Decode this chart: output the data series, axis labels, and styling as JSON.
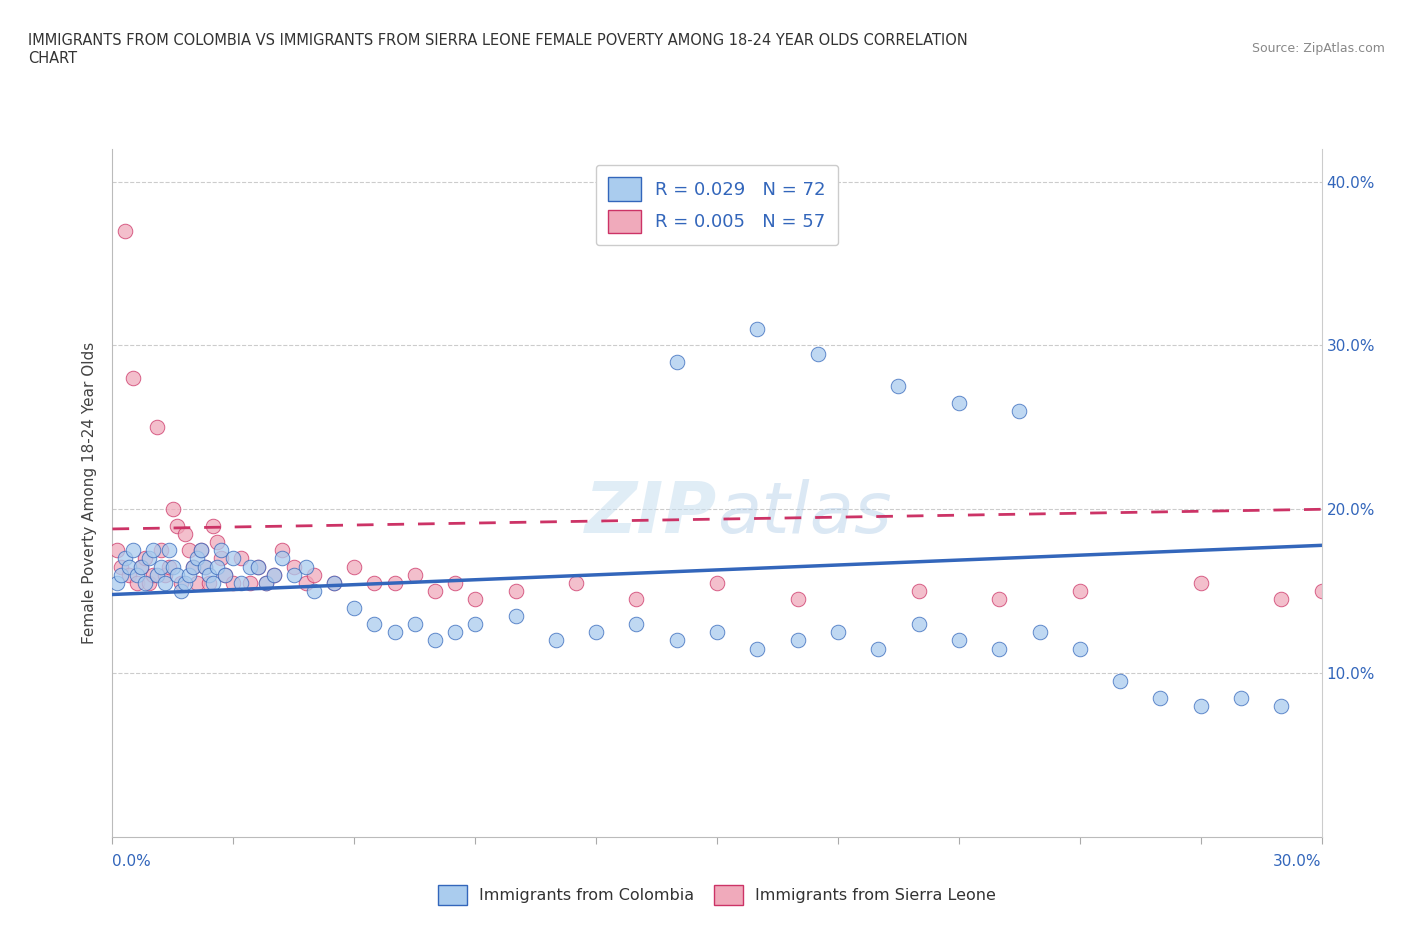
{
  "title_line1": "IMMIGRANTS FROM COLOMBIA VS IMMIGRANTS FROM SIERRA LEONE FEMALE POVERTY AMONG 18-24 YEAR OLDS CORRELATION",
  "title_line2": "CHART",
  "source": "Source: ZipAtlas.com",
  "ylabel": "Female Poverty Among 18-24 Year Olds",
  "watermark": "ZIPatlas",
  "colombia_R": 0.029,
  "colombia_N": 72,
  "sierraleone_R": 0.005,
  "sierraleone_N": 57,
  "colombia_color": "#aaccee",
  "sierraleone_color": "#f0aabb",
  "colombia_line_color": "#3366bb",
  "sierraleone_line_color": "#cc3366",
  "xlim": [
    0.0,
    0.3
  ],
  "ylim": [
    0.0,
    0.42
  ],
  "colombia_trend": [
    0.148,
    0.178
  ],
  "sierraleone_trend": [
    0.188,
    0.2
  ],
  "colombia_x": [
    0.001,
    0.002,
    0.003,
    0.004,
    0.005,
    0.006,
    0.007,
    0.008,
    0.009,
    0.01,
    0.011,
    0.012,
    0.013,
    0.014,
    0.015,
    0.016,
    0.017,
    0.018,
    0.019,
    0.02,
    0.021,
    0.022,
    0.023,
    0.024,
    0.025,
    0.026,
    0.027,
    0.028,
    0.03,
    0.032,
    0.034,
    0.036,
    0.038,
    0.04,
    0.042,
    0.045,
    0.048,
    0.05,
    0.055,
    0.06,
    0.065,
    0.07,
    0.075,
    0.08,
    0.085,
    0.09,
    0.1,
    0.11,
    0.12,
    0.13,
    0.14,
    0.15,
    0.16,
    0.17,
    0.18,
    0.19,
    0.2,
    0.21,
    0.22,
    0.23,
    0.24,
    0.25,
    0.26,
    0.27,
    0.28,
    0.29,
    0.14,
    0.16,
    0.175,
    0.195,
    0.21,
    0.225
  ],
  "colombia_y": [
    0.155,
    0.16,
    0.17,
    0.165,
    0.175,
    0.16,
    0.165,
    0.155,
    0.17,
    0.175,
    0.16,
    0.165,
    0.155,
    0.175,
    0.165,
    0.16,
    0.15,
    0.155,
    0.16,
    0.165,
    0.17,
    0.175,
    0.165,
    0.16,
    0.155,
    0.165,
    0.175,
    0.16,
    0.17,
    0.155,
    0.165,
    0.165,
    0.155,
    0.16,
    0.17,
    0.16,
    0.165,
    0.15,
    0.155,
    0.14,
    0.13,
    0.125,
    0.13,
    0.12,
    0.125,
    0.13,
    0.135,
    0.12,
    0.125,
    0.13,
    0.12,
    0.125,
    0.115,
    0.12,
    0.125,
    0.115,
    0.13,
    0.12,
    0.115,
    0.125,
    0.115,
    0.095,
    0.085,
    0.08,
    0.085,
    0.08,
    0.29,
    0.31,
    0.295,
    0.275,
    0.265,
    0.26
  ],
  "sierraleone_x": [
    0.001,
    0.002,
    0.003,
    0.004,
    0.005,
    0.006,
    0.007,
    0.008,
    0.009,
    0.01,
    0.011,
    0.012,
    0.013,
    0.014,
    0.015,
    0.016,
    0.017,
    0.018,
    0.019,
    0.02,
    0.021,
    0.022,
    0.023,
    0.024,
    0.025,
    0.026,
    0.027,
    0.028,
    0.03,
    0.032,
    0.034,
    0.036,
    0.038,
    0.04,
    0.042,
    0.045,
    0.048,
    0.05,
    0.055,
    0.06,
    0.065,
    0.07,
    0.075,
    0.08,
    0.085,
    0.09,
    0.1,
    0.115,
    0.13,
    0.15,
    0.17,
    0.2,
    0.22,
    0.24,
    0.27,
    0.29,
    0.3
  ],
  "sierraleone_y": [
    0.175,
    0.165,
    0.37,
    0.16,
    0.28,
    0.155,
    0.165,
    0.17,
    0.155,
    0.16,
    0.25,
    0.175,
    0.16,
    0.165,
    0.2,
    0.19,
    0.155,
    0.185,
    0.175,
    0.165,
    0.155,
    0.175,
    0.165,
    0.155,
    0.19,
    0.18,
    0.17,
    0.16,
    0.155,
    0.17,
    0.155,
    0.165,
    0.155,
    0.16,
    0.175,
    0.165,
    0.155,
    0.16,
    0.155,
    0.165,
    0.155,
    0.155,
    0.16,
    0.15,
    0.155,
    0.145,
    0.15,
    0.155,
    0.145,
    0.155,
    0.145,
    0.15,
    0.145,
    0.15,
    0.155,
    0.145,
    0.15
  ]
}
